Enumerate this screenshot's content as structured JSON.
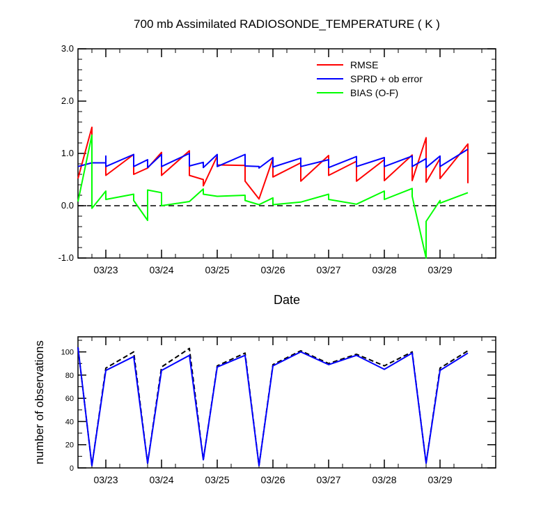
{
  "chart_data": [
    {
      "type": "line",
      "title": "700 mb Assimilated RADIOSONDE_TEMPERATURE ( K )",
      "xlabel": "Date",
      "ylabel": "",
      "x_ticks": [
        "03/23",
        "03/24",
        "03/25",
        "03/26",
        "03/27",
        "03/28",
        "03/29"
      ],
      "xlim": [
        0.0,
        7.5
      ],
      "ylim": [
        -1.0,
        3.0
      ],
      "y_ticks": [
        "-1.0",
        "0.0",
        "1.0",
        "2.0",
        "3.0"
      ],
      "y_tick_values": [
        -1,
        0,
        1,
        2,
        3
      ],
      "legend_position": "top-right",
      "grid": false,
      "reference_line_y": 0,
      "series": [
        {
          "name": "RMSE",
          "color": "#ff0000",
          "points": [
            [
              0.0,
              0.52
            ],
            [
              0.25,
              1.5
            ],
            [
              0.25,
              0.82
            ],
            [
              0.5,
              0.82
            ],
            [
              0.5,
              0.58
            ],
            [
              1.0,
              0.98
            ],
            [
              1.0,
              0.6
            ],
            [
              1.25,
              0.72
            ],
            [
              1.5,
              1.02
            ],
            [
              1.5,
              0.58
            ],
            [
              2.0,
              1.05
            ],
            [
              2.0,
              0.58
            ],
            [
              2.25,
              0.5
            ],
            [
              2.25,
              0.38
            ],
            [
              2.5,
              0.95
            ],
            [
              2.5,
              0.78
            ],
            [
              3.0,
              0.77
            ],
            [
              3.0,
              0.47
            ],
            [
              3.25,
              0.13
            ],
            [
              3.5,
              0.9
            ],
            [
              3.5,
              0.55
            ],
            [
              4.0,
              0.82
            ],
            [
              4.0,
              0.47
            ],
            [
              4.5,
              0.96
            ],
            [
              4.5,
              0.58
            ],
            [
              5.0,
              0.85
            ],
            [
              5.0,
              0.47
            ],
            [
              5.5,
              0.88
            ],
            [
              5.5,
              0.48
            ],
            [
              6.0,
              0.97
            ],
            [
              6.0,
              0.48
            ],
            [
              6.25,
              1.3
            ],
            [
              6.25,
              0.45
            ],
            [
              6.5,
              0.9
            ],
            [
              6.5,
              0.52
            ],
            [
              7.0,
              1.18
            ],
            [
              7.0,
              0.43
            ]
          ]
        },
        {
          "name": "SPRD + ob error",
          "color": "#0000ff",
          "points": [
            [
              0.0,
              0.75
            ],
            [
              0.25,
              0.82
            ],
            [
              0.5,
              0.82
            ],
            [
              0.5,
              0.95
            ],
            [
              0.5,
              0.75
            ],
            [
              1.0,
              0.98
            ],
            [
              1.0,
              0.75
            ],
            [
              1.25,
              0.88
            ],
            [
              1.25,
              0.73
            ],
            [
              1.5,
              0.98
            ],
            [
              1.5,
              0.75
            ],
            [
              2.0,
              1.0
            ],
            [
              2.0,
              0.76
            ],
            [
              2.25,
              0.83
            ],
            [
              2.25,
              0.73
            ],
            [
              2.5,
              0.98
            ],
            [
              2.5,
              0.75
            ],
            [
              3.0,
              0.98
            ],
            [
              3.0,
              0.76
            ],
            [
              3.25,
              0.75
            ],
            [
              3.25,
              0.72
            ],
            [
              3.5,
              0.92
            ],
            [
              3.5,
              0.74
            ],
            [
              4.0,
              0.91
            ],
            [
              4.0,
              0.75
            ],
            [
              4.5,
              0.88
            ],
            [
              4.5,
              0.73
            ],
            [
              5.0,
              0.94
            ],
            [
              5.0,
              0.75
            ],
            [
              5.5,
              0.92
            ],
            [
              5.5,
              0.75
            ],
            [
              6.0,
              0.95
            ],
            [
              6.0,
              0.75
            ],
            [
              6.25,
              0.9
            ],
            [
              6.25,
              0.73
            ],
            [
              6.5,
              0.95
            ],
            [
              6.5,
              0.75
            ],
            [
              7.0,
              1.08
            ]
          ]
        },
        {
          "name": "BIAS (O-F)",
          "color": "#00ff00",
          "points": [
            [
              0.0,
              0.08
            ],
            [
              0.25,
              1.35
            ],
            [
              0.25,
              -0.05
            ],
            [
              0.5,
              0.28
            ],
            [
              0.5,
              0.12
            ],
            [
              1.0,
              0.22
            ],
            [
              1.0,
              0.1
            ],
            [
              1.25,
              -0.28
            ],
            [
              1.25,
              0.3
            ],
            [
              1.5,
              0.25
            ],
            [
              1.5,
              0.0
            ],
            [
              2.0,
              0.08
            ],
            [
              2.0,
              0.08
            ],
            [
              2.25,
              0.32
            ],
            [
              2.25,
              0.22
            ],
            [
              2.5,
              0.18
            ],
            [
              3.0,
              0.2
            ],
            [
              3.0,
              0.1
            ],
            [
              3.25,
              0.02
            ],
            [
              3.5,
              0.15
            ],
            [
              3.5,
              0.02
            ],
            [
              4.0,
              0.07
            ],
            [
              4.0,
              0.07
            ],
            [
              4.5,
              0.22
            ],
            [
              4.5,
              0.12
            ],
            [
              5.0,
              0.03
            ],
            [
              5.0,
              0.03
            ],
            [
              5.5,
              0.28
            ],
            [
              5.5,
              0.12
            ],
            [
              6.0,
              0.33
            ],
            [
              6.0,
              0.18
            ],
            [
              6.25,
              -1.0
            ],
            [
              6.25,
              -0.3
            ],
            [
              6.5,
              0.1
            ],
            [
              6.5,
              0.05
            ],
            [
              7.0,
              0.25
            ]
          ]
        }
      ]
    },
    {
      "type": "line",
      "title": "",
      "xlabel": "",
      "ylabel": "number of observations",
      "x_ticks": [
        "03/23",
        "03/24",
        "03/25",
        "03/26",
        "03/27",
        "03/28",
        "03/29"
      ],
      "xlim": [
        0.0,
        7.5
      ],
      "ylim": [
        0,
        113
      ],
      "y_ticks": [
        "0",
        "20",
        "40",
        "60",
        "80",
        "100"
      ],
      "y_tick_values": [
        0,
        20,
        40,
        60,
        80,
        100
      ],
      "grid": false,
      "series": [
        {
          "color": "#000000",
          "dashed": true,
          "points": [
            [
              0.0,
              104
            ],
            [
              0.25,
              2
            ],
            [
              0.5,
              86
            ],
            [
              1.0,
              100
            ],
            [
              1.25,
              4
            ],
            [
              1.5,
              87
            ],
            [
              2.0,
              103
            ],
            [
              2.25,
              7
            ],
            [
              2.5,
              88
            ],
            [
              3.0,
              99
            ],
            [
              3.25,
              2
            ],
            [
              3.5,
              89
            ],
            [
              4.0,
              101
            ],
            [
              4.5,
              90
            ],
            [
              5.0,
              98
            ],
            [
              5.5,
              88
            ],
            [
              6.0,
              100
            ],
            [
              6.25,
              4
            ],
            [
              6.5,
              86
            ],
            [
              7.0,
              101
            ]
          ]
        },
        {
          "color": "#0000ff",
          "points": [
            [
              0.0,
              104
            ],
            [
              0.25,
              2
            ],
            [
              0.5,
              84
            ],
            [
              1.0,
              96
            ],
            [
              1.25,
              4
            ],
            [
              1.5,
              84
            ],
            [
              2.0,
              97
            ],
            [
              2.25,
              7
            ],
            [
              2.5,
              87
            ],
            [
              3.0,
              97
            ],
            [
              3.25,
              2
            ],
            [
              3.5,
              88
            ],
            [
              4.0,
              100
            ],
            [
              4.5,
              89
            ],
            [
              5.0,
              97
            ],
            [
              5.5,
              85
            ],
            [
              6.0,
              99
            ],
            [
              6.25,
              4
            ],
            [
              6.5,
              84
            ],
            [
              7.0,
              99
            ]
          ]
        }
      ]
    }
  ]
}
